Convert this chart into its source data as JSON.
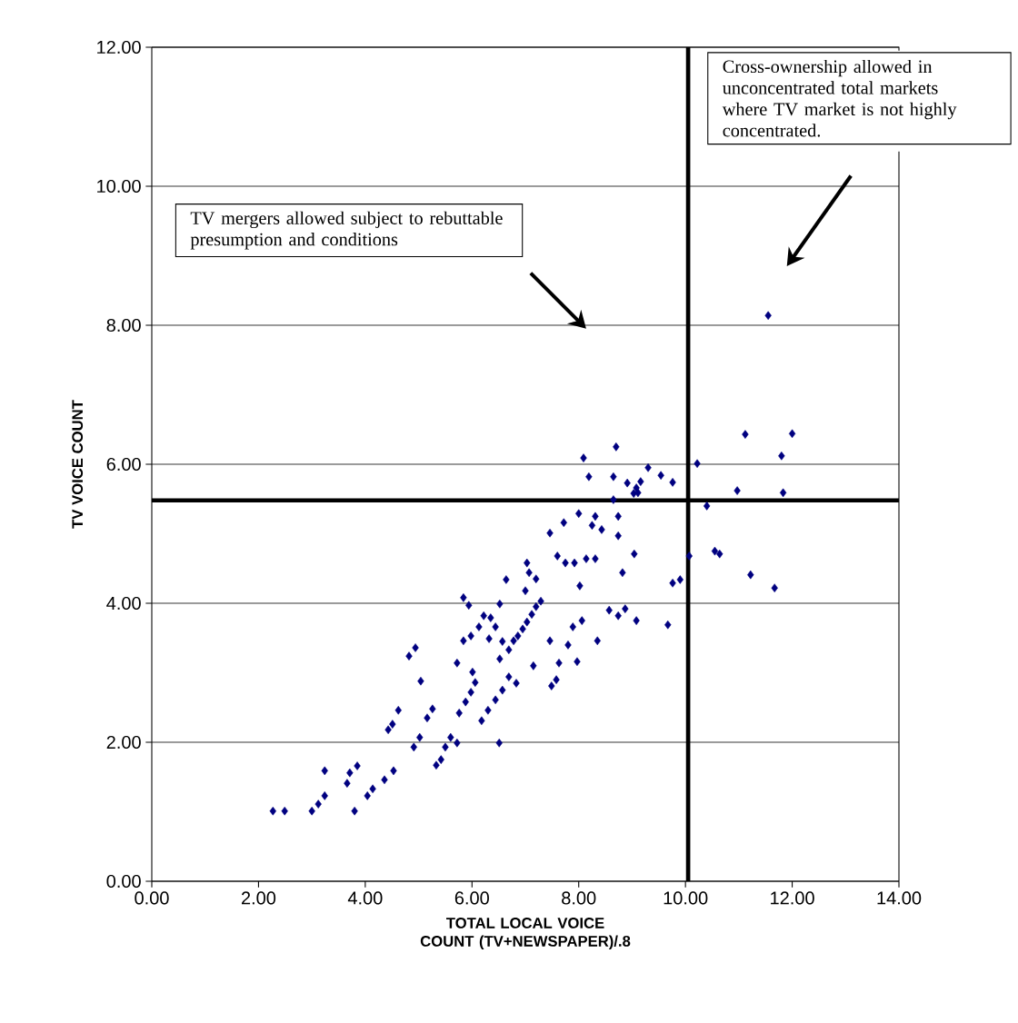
{
  "chart_data": {
    "type": "scatter",
    "xlabel": "TOTAL LOCAL VOICE COUNT (TV+NEWSPAPER)/.8",
    "ylabel": "TV VOICE COUNT",
    "annotations": [
      "TV mergers allowed subject to rebuttable presumption and conditions",
      "Cross-ownership allowed in unconcentrated total markets where TV market is not highly concentrated."
    ],
    "x": [
      2.27,
      2.49,
      3.0,
      3.12,
      3.24,
      3.24,
      3.66,
      3.71,
      3.85,
      3.8,
      4.04,
      4.14,
      4.36,
      4.53,
      4.43,
      4.51,
      4.62,
      4.82,
      4.94,
      4.91,
      5.02,
      5.04,
      5.16,
      5.26,
      5.33,
      5.42,
      5.5,
      5.6,
      5.72,
      5.72,
      5.84,
      5.94,
      5.76,
      5.88,
      5.98,
      6.06,
      5.98,
      6.13,
      5.84,
      6.01,
      6.51,
      6.18,
      6.3,
      6.44,
      6.57,
      6.69,
      6.83,
      6.22,
      6.35,
      6.44,
      6.32,
      6.52,
      6.64,
      6.57,
      6.69,
      6.78,
      6.86,
      6.95,
      7.03,
      7.12,
      7.2,
      7.29,
      6.52,
      7.15,
      7.0,
      7.07,
      7.03,
      7.2,
      7.46,
      7.49,
      7.58,
      7.63,
      7.46,
      7.6,
      7.75,
      7.72,
      7.92,
      7.97,
      8.0,
      7.89,
      8.06,
      7.8,
      8.02,
      8.14,
      8.31,
      8.09,
      8.19,
      8.25,
      8.31,
      8.35,
      8.43,
      8.57,
      8.7,
      8.65,
      8.65,
      8.74,
      8.74,
      8.82,
      8.74,
      8.87,
      8.91,
      9.03,
      9.08,
      9.11,
      9.04,
      9.08,
      9.16,
      9.3,
      9.54,
      9.76,
      9.67,
      9.76,
      9.9,
      10.07,
      10.22,
      10.4,
      10.55,
      10.64,
      10.97,
      11.12,
      11.22,
      11.55,
      11.67,
      11.8,
      11.83,
      12.0
    ],
    "values": [
      1.01,
      1.01,
      1.01,
      1.11,
      1.23,
      1.59,
      1.41,
      1.56,
      1.66,
      1.01,
      1.23,
      1.33,
      1.46,
      1.59,
      2.18,
      2.26,
      2.46,
      3.24,
      3.36,
      1.93,
      2.07,
      2.88,
      2.35,
      2.48,
      1.67,
      1.75,
      1.93,
      2.07,
      1.99,
      3.14,
      4.08,
      3.97,
      2.42,
      2.58,
      2.72,
      2.86,
      3.53,
      3.66,
      3.46,
      3.01,
      1.99,
      2.31,
      2.46,
      2.61,
      2.75,
      2.94,
      2.85,
      3.82,
      3.79,
      3.66,
      3.49,
      3.99,
      4.34,
      3.45,
      3.33,
      3.46,
      3.53,
      3.63,
      3.73,
      3.84,
      3.95,
      4.03,
      3.2,
      3.1,
      4.18,
      4.44,
      4.58,
      4.35,
      3.46,
      2.81,
      2.9,
      3.14,
      5.01,
      4.68,
      4.58,
      5.16,
      4.58,
      3.16,
      5.29,
      3.66,
      3.75,
      3.4,
      4.25,
      4.64,
      4.64,
      6.09,
      5.82,
      5.12,
      5.25,
      3.46,
      5.06,
      3.9,
      6.25,
      5.82,
      5.49,
      5.25,
      4.97,
      4.44,
      3.82,
      3.92,
      5.73,
      5.58,
      5.66,
      5.59,
      4.71,
      3.75,
      5.75,
      5.95,
      5.84,
      5.74,
      3.69,
      4.29,
      4.34,
      4.68,
      6.01,
      5.4,
      4.75,
      4.71,
      5.62,
      6.43,
      4.41,
      8.14,
      4.22,
      6.12,
      5.59,
      6.44
    ],
    "color": "#000080",
    "marker": "diamond",
    "xlim": [
      0,
      14
    ],
    "ylim": [
      0,
      12
    ],
    "xticks": [
      {
        "value": 0,
        "label": "0.00"
      },
      {
        "value": 2,
        "label": "2.00"
      },
      {
        "value": 4,
        "label": "4.00"
      },
      {
        "value": 6,
        "label": "6.00"
      },
      {
        "value": 8,
        "label": "8.00"
      },
      {
        "value": 10,
        "label": "10.00"
      },
      {
        "value": 12,
        "label": "12.00"
      },
      {
        "value": 14,
        "label": "14.00"
      }
    ],
    "yticks": [
      {
        "value": 0,
        "label": "0.00"
      },
      {
        "value": 2,
        "label": "2.00"
      },
      {
        "value": 4,
        "label": "4.00"
      },
      {
        "value": 6,
        "label": "6.00"
      },
      {
        "value": 8,
        "label": "8.00"
      },
      {
        "value": 10,
        "label": "10.00"
      },
      {
        "value": 12,
        "label": "12.00"
      }
    ],
    "grid": "y",
    "ref_lines": [
      {
        "axis": "y",
        "value": 5.48,
        "color": "#000000"
      },
      {
        "axis": "x",
        "value": 10.05,
        "color": "#000000"
      }
    ]
  }
}
